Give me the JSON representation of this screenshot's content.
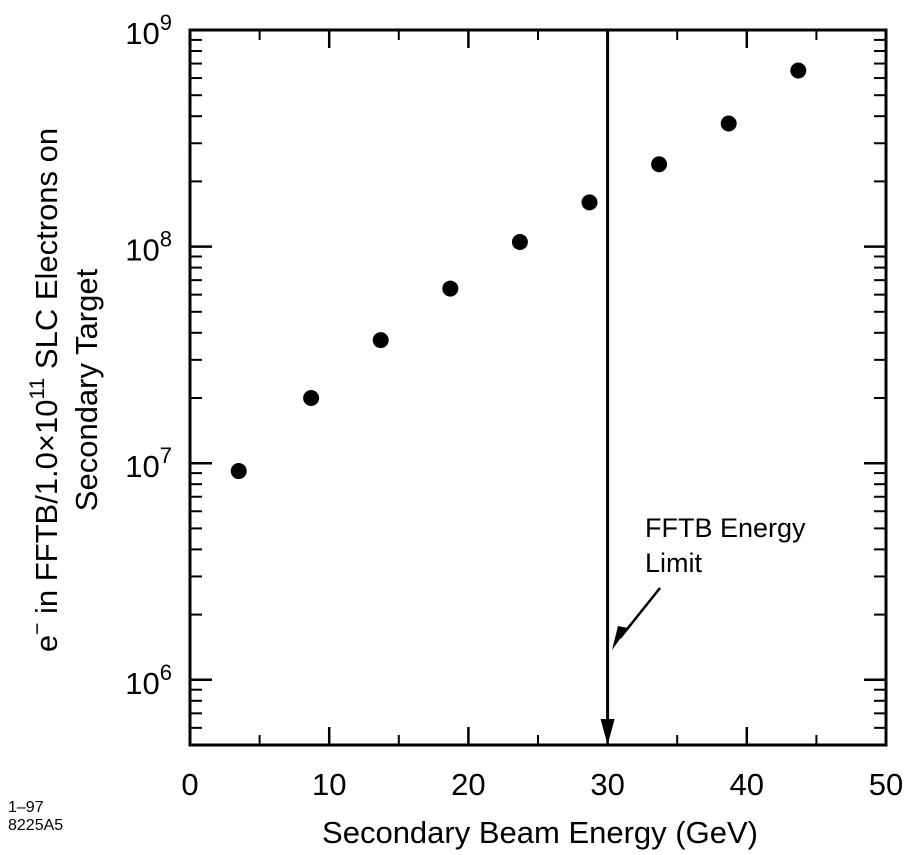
{
  "chart_data": {
    "type": "scatter",
    "scale": {
      "x": "linear",
      "y": "log"
    },
    "xlim": [
      0,
      50
    ],
    "ylim": [
      500000,
      1000000000
    ],
    "x_ticks": [
      "0",
      "10",
      "20",
      "30",
      "40",
      "50"
    ],
    "y_ticks": [
      {
        "base": "10",
        "exp": "6",
        "value": 1000000
      },
      {
        "base": "10",
        "exp": "7",
        "value": 10000000
      },
      {
        "base": "10",
        "exp": "8",
        "value": 100000000
      },
      {
        "base": "10",
        "exp": "9",
        "value": 1000000000
      }
    ],
    "xlabel": "Secondary Beam Energy  (GeV)",
    "ylabel": {
      "line1_pre": "e",
      "line1_sup1": "−",
      "line1_mid": " in FFTB/1.0×10",
      "line1_sup2": "11",
      "line1_post": " SLC Electrons on",
      "line2": "Secondary Target"
    },
    "points": [
      {
        "x": 3.5,
        "y": 9200000
      },
      {
        "x": 8.7,
        "y": 20000000
      },
      {
        "x": 13.7,
        "y": 37000000
      },
      {
        "x": 18.7,
        "y": 64000000
      },
      {
        "x": 23.7,
        "y": 105000000
      },
      {
        "x": 28.7,
        "y": 160000000
      },
      {
        "x": 33.7,
        "y": 240000000
      },
      {
        "x": 38.7,
        "y": 370000000
      },
      {
        "x": 43.7,
        "y": 650000000
      }
    ],
    "limit_line": {
      "x": 30
    },
    "annotation": {
      "lines": [
        "FFTB Energy",
        "Limit"
      ]
    },
    "figure_id": {
      "lines": [
        "1–97",
        "8225A5"
      ]
    }
  }
}
